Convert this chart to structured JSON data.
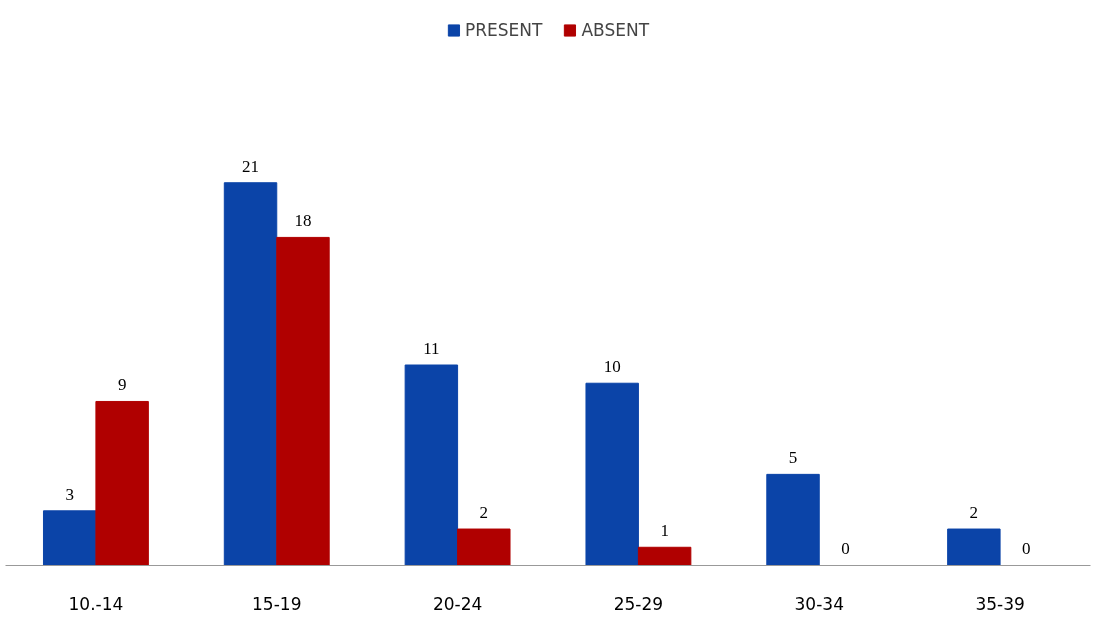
{
  "chart_data": {
    "type": "bar",
    "categories": [
      "10.-14",
      "15-19",
      "20-24",
      "25-29",
      "30-34",
      "35-39"
    ],
    "series": [
      {
        "name": "PRESENT",
        "color": "#0b44a8",
        "values": [
          3,
          21,
          11,
          10,
          5,
          2
        ]
      },
      {
        "name": "ABSENT",
        "color": "#b00000",
        "values": [
          9,
          18,
          2,
          1,
          0,
          0
        ]
      }
    ],
    "data_labels": true,
    "legend": "top",
    "tick_labels": "x",
    "grid": false
  }
}
